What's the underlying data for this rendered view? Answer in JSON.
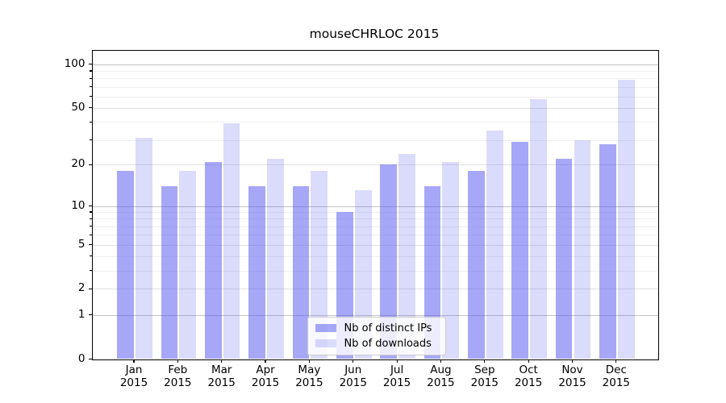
{
  "chart_data": {
    "type": "bar",
    "title": "mouseCHRLOC 2015",
    "year_label": "2015",
    "categories": [
      "Jan",
      "Feb",
      "Mar",
      "Apr",
      "May",
      "Jun",
      "Jul",
      "Aug",
      "Sep",
      "Oct",
      "Nov",
      "Dec"
    ],
    "series": [
      {
        "name": "Nb of distinct IPs",
        "color": "rgba(87,87,240,0.52)",
        "values": [
          18,
          14,
          21,
          14,
          14,
          9,
          20,
          14,
          18,
          29,
          22,
          28
        ]
      },
      {
        "name": "Nb of downloads",
        "color": "rgba(87,87,240,0.21)",
        "values": [
          31,
          18,
          39,
          22,
          18,
          13,
          24,
          21,
          35,
          58,
          30,
          78
        ]
      }
    ],
    "yscale": "log1p",
    "ylim": [
      0,
      126
    ],
    "yticks": [
      0,
      1,
      2,
      5,
      10,
      20,
      50,
      100
    ],
    "major_gridlines": [
      1,
      10,
      100
    ],
    "secondary_gridlines": [
      2,
      5,
      20,
      50
    ],
    "minor_gridlines": [
      3,
      4,
      6,
      7,
      8,
      9,
      30,
      40,
      60,
      70,
      80,
      90
    ],
    "grid": true,
    "legend_position": "lower center",
    "grid_colors": {
      "major": "#c3c3c3",
      "secondary": "#e1e1e1",
      "minor": "#f0f0f0"
    }
  }
}
